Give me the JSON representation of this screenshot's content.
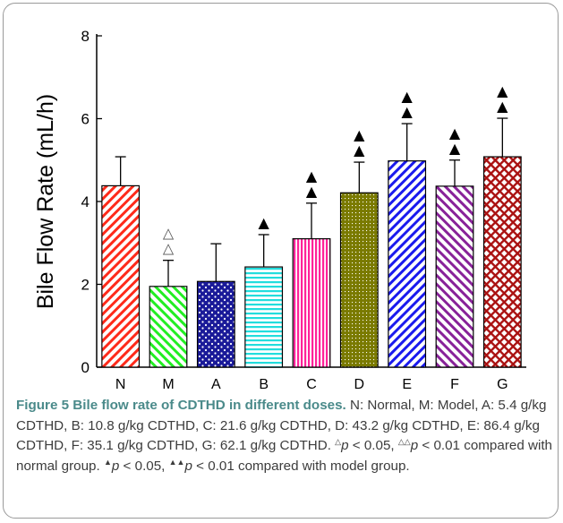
{
  "chart_data": {
    "type": "bar",
    "ylabel": "Bile Flow Rate (mL/h)",
    "ylim": [
      0,
      8
    ],
    "yticks": [
      0,
      2,
      4,
      6,
      8
    ],
    "categories": [
      "N",
      "M",
      "A",
      "B",
      "C",
      "D",
      "E",
      "F",
      "G"
    ],
    "values": [
      4.38,
      1.95,
      2.07,
      2.42,
      3.1,
      4.21,
      4.98,
      4.37,
      5.08
    ],
    "errors": [
      0.7,
      0.63,
      0.91,
      0.78,
      0.86,
      0.74,
      0.9,
      0.63,
      0.93
    ],
    "significance": [
      "",
      "△△",
      "",
      "▲",
      "▲▲",
      "▲▲",
      "▲▲",
      "▲▲",
      "▲▲"
    ],
    "bar_colors": [
      "#ff2a1a",
      "#22ee22",
      "#1a1a99",
      "#22dddd",
      "#ff2299",
      "#7a7a00",
      "#1a1aee",
      "#882299",
      "#aa1111"
    ],
    "bar_patterns": [
      "diag-right",
      "diag-left",
      "dots",
      "hlines",
      "vlines",
      "fine-dots",
      "diag-right",
      "diag-left",
      "crosshatch"
    ]
  },
  "caption": {
    "title": "Figure 5 Bile flow rate of CDTHD in different doses.",
    "text_1": " N: Normal, M: Model, A: 5.4 g/kg CDTHD, B: 10.8 g/kg CDTHD, C: 21.6 g/kg CDTHD, D: 43.2 g/kg CDTHD, E: 86.4 g/kg CDTHD, F: 35.1 g/kg CDTHD, G: 62.1 g/kg CDTHD. ",
    "sym_open_1": "△",
    "p_a": "p",
    "text_2": " < 0.05, ",
    "sym_open_2": "△△",
    "p_b": "p",
    "text_3": " < 0.01 compared with normal group. ",
    "sym_filled_1": "▲",
    "p_c": "p",
    "text_4": " < 0.05, ",
    "sym_filled_2": "▲▲",
    "p_d": "p",
    "text_5": " < 0.01 compared with model group."
  }
}
